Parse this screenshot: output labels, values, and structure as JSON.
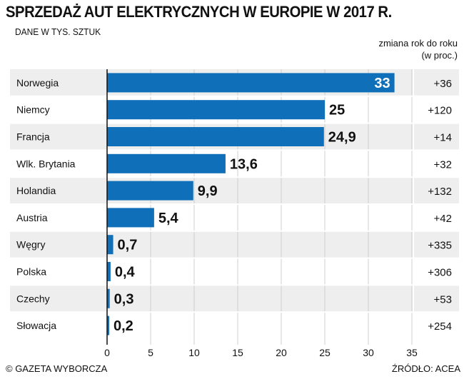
{
  "header": {
    "title": "SPRZEDAŻ AUT ELEKTRYCZNYCH W EUROPIE W 2017 R.",
    "subtitle": "DANE W TYS. SZTUK",
    "yoy_line1": "zmiana rok do roku",
    "yoy_line2": "(w proc.)"
  },
  "footer": {
    "copyright": "© GAZETA WYBORCZA",
    "source": "ŹRÓDŁO: ACEA"
  },
  "colors": {
    "bar": "#0f6fb8",
    "band": "#eeeeee",
    "separator": "#ffffff",
    "axis": "#111111"
  },
  "chart_data": {
    "type": "bar",
    "orientation": "horizontal",
    "categories": [
      "Norwegia",
      "Niemcy",
      "Francja",
      "Wlk. Brytania",
      "Holandia",
      "Austria",
      "Węgry",
      "Polska",
      "Czechy",
      "Słowacja"
    ],
    "values": [
      33,
      25,
      24.9,
      13.6,
      9.9,
      5.4,
      0.7,
      0.4,
      0.3,
      0.2
    ],
    "value_labels": [
      "33",
      "25",
      "24,9",
      "13,6",
      "9,9",
      "5,4",
      "0,7",
      "0,4",
      "0,3",
      "0,2"
    ],
    "yoy_change": [
      "+36",
      "+120",
      "+14",
      "+32",
      "+132",
      "+42",
      "+335",
      "+306",
      "+53",
      "+254"
    ],
    "title": "SPRZEDAŻ AUT ELEKTRYCZNYCH W EUROPIE W 2017 R.",
    "xlabel": "",
    "ylabel": "",
    "xlim": [
      0,
      35
    ],
    "xticks": [
      0,
      5,
      10,
      15,
      20,
      25,
      30,
      35
    ],
    "grid": true
  }
}
